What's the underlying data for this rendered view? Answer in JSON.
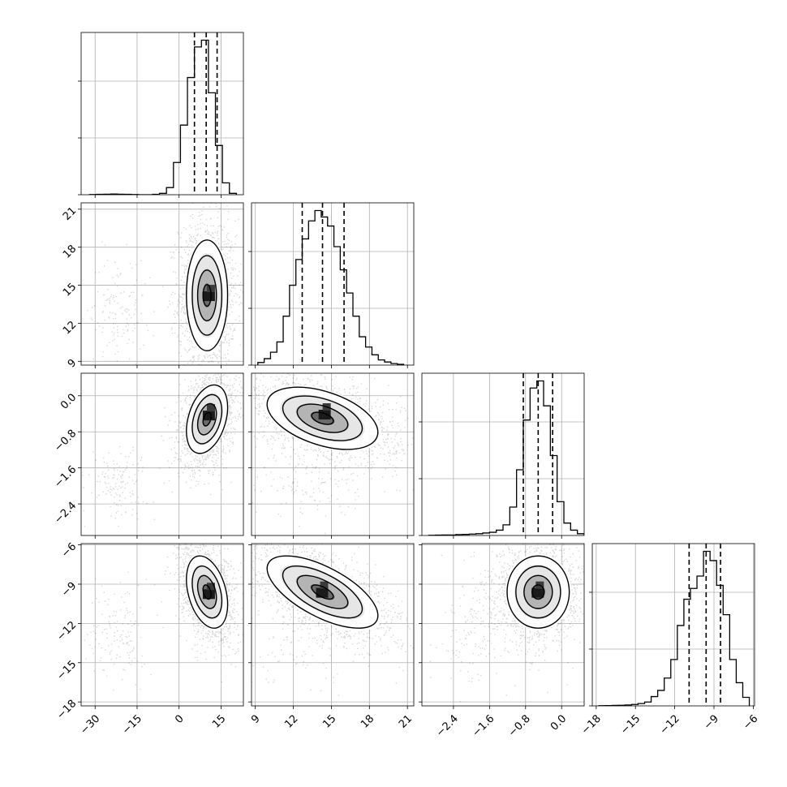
{
  "chart_data": {
    "type": "corner",
    "grid": true,
    "parameters": [
      {
        "range": [
          -35,
          23
        ],
        "ticks": [
          -30,
          -15,
          0,
          15
        ],
        "tick_labels": [
          "−30",
          "−15",
          "0",
          "15"
        ],
        "quantiles": [
          5.5,
          9.7,
          13.6
        ]
      },
      {
        "range": [
          8.7,
          21.5
        ],
        "ticks": [
          9,
          12,
          15,
          18,
          21
        ],
        "tick_labels": [
          "9",
          "12",
          "15",
          "18",
          "21"
        ],
        "quantiles": [
          12.7,
          14.3,
          16.0
        ]
      },
      {
        "range": [
          -3.1,
          0.5
        ],
        "ticks": [
          -2.4,
          -1.6,
          -0.8,
          0.0
        ],
        "tick_labels": [
          "−2.4",
          "−1.6",
          "−0.8",
          "0.0"
        ],
        "quantiles": [
          -0.85,
          -0.52,
          -0.2
        ]
      },
      {
        "range": [
          -18.3,
          -5.9
        ],
        "ticks": [
          -18,
          -15,
          -12,
          -9,
          -6
        ],
        "tick_labels": [
          "−18",
          "−15",
          "−12",
          "−9",
          "−6"
        ],
        "quantiles": [
          -10.9,
          -9.6,
          -8.5
        ]
      }
    ],
    "hist1d": [
      {
        "bin_edges": [
          -32,
          -29.5,
          -27,
          -24.5,
          -22,
          -19.5,
          -17,
          -14.5,
          -12,
          -9.5,
          -7,
          -4.5,
          -2,
          0.5,
          3,
          5.5,
          8,
          10.5,
          13,
          15.5,
          18,
          20.5
        ],
        "counts": [
          1,
          2,
          3,
          4,
          3,
          2,
          1,
          0,
          0,
          2,
          8,
          42,
          190,
          410,
          690,
          870,
          910,
          600,
          290,
          70,
          8
        ]
      },
      {
        "bin_edges": [
          9.2,
          9.7,
          10.2,
          10.7,
          11.2,
          11.7,
          12.2,
          12.7,
          13.2,
          13.7,
          14.2,
          14.7,
          15.2,
          15.7,
          16.2,
          16.7,
          17.2,
          17.7,
          18.2,
          18.7,
          19.2,
          19.7,
          20.2,
          20.7
        ],
        "counts": [
          10,
          25,
          50,
          90,
          190,
          310,
          410,
          490,
          560,
          600,
          575,
          540,
          460,
          370,
          280,
          190,
          110,
          70,
          40,
          20,
          12,
          6,
          3
        ]
      },
      {
        "bin_edges": [
          -2.95,
          -2.8,
          -2.65,
          -2.5,
          -2.35,
          -2.2,
          -2.05,
          -1.9,
          -1.75,
          -1.6,
          -1.45,
          -1.3,
          -1.15,
          -1.0,
          -0.85,
          -0.7,
          -0.55,
          -0.4,
          -0.25,
          -0.1,
          0.05,
          0.2,
          0.35,
          0.5
        ],
        "counts": [
          1,
          2,
          3,
          3,
          5,
          6,
          8,
          10,
          14,
          18,
          30,
          60,
          160,
          370,
          650,
          830,
          870,
          730,
          450,
          190,
          70,
          30,
          10
        ]
      },
      {
        "bin_edges": [
          -17.8,
          -17.3,
          -16.8,
          -16.3,
          -15.8,
          -15.3,
          -14.8,
          -14.3,
          -13.8,
          -13.3,
          -12.8,
          -12.3,
          -11.8,
          -11.3,
          -10.8,
          -10.3,
          -9.8,
          -9.3,
          -8.8,
          -8.3,
          -7.8,
          -7.3,
          -6.8,
          -6.3
        ],
        "counts": [
          1,
          2,
          3,
          4,
          6,
          9,
          15,
          25,
          60,
          100,
          180,
          300,
          520,
          690,
          760,
          840,
          1000,
          940,
          780,
          590,
          300,
          150,
          55
        ]
      }
    ],
    "hist2d": [
      {
        "x": 0,
        "y": 1,
        "mean": [
          10,
          14.2
        ],
        "std": [
          3.2,
          1.9
        ],
        "rho": 0.0,
        "peak": [
          10.8,
          14.2
        ]
      },
      {
        "x": 0,
        "y": 2,
        "mean": [
          10,
          -0.52
        ],
        "std": [
          3.2,
          0.33
        ],
        "rho": 0.35,
        "peak": [
          10.8,
          -0.42
        ]
      },
      {
        "x": 1,
        "y": 2,
        "mean": [
          14.3,
          -0.5
        ],
        "std": [
          1.9,
          0.3
        ],
        "rho": -0.45,
        "peak": [
          14.5,
          -0.4
        ]
      },
      {
        "x": 0,
        "y": 3,
        "mean": [
          10,
          -9.6
        ],
        "std": [
          3.2,
          1.2
        ],
        "rho": -0.35,
        "peak": [
          10.8,
          -9.7
        ]
      },
      {
        "x": 1,
        "y": 3,
        "mean": [
          14.3,
          -9.6
        ],
        "std": [
          1.9,
          1.2
        ],
        "rho": -0.65,
        "peak": [
          14.3,
          -9.6
        ]
      },
      {
        "x": 2,
        "y": 3,
        "mean": [
          -0.52,
          -9.6
        ],
        "std": [
          0.3,
          1.2
        ],
        "rho": 0.0,
        "peak": [
          -0.52,
          -9.6
        ]
      }
    ],
    "outlier_cluster": {
      "mean": [
        -22,
        13,
        -1.9,
        -12.5
      ],
      "std": [
        5,
        2.2,
        0.4,
        2
      ]
    }
  }
}
